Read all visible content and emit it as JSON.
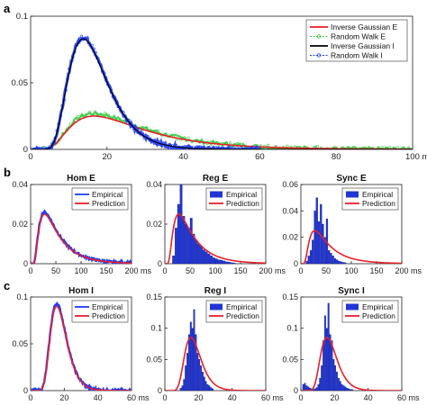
{
  "panel_labels": {
    "a": "a",
    "b": "b",
    "c": "c"
  },
  "unit": "ms",
  "colors": {
    "inverse_gaussian_e": "#e8202a",
    "random_walk_e": "#2ec93a",
    "inverse_gaussian_i": "#000000",
    "random_walk_i": "#1f3cff",
    "empirical": "#1f3cff",
    "prediction": "#e8202a",
    "hist_bar": "#2135d6"
  },
  "chart_data": [
    {
      "id": "a",
      "type": "line",
      "xlim": [
        0,
        100
      ],
      "ylim": [
        0,
        0.1
      ],
      "xticks": [
        "0",
        "20",
        "40",
        "60",
        "80",
        "100 ms"
      ],
      "yticks": [
        "0",
        "0.05",
        "0.1"
      ],
      "legend_position": "top-right",
      "series": [
        {
          "name": "Inverse Gaussian E",
          "mean": 27,
          "shape": 80,
          "peak": 0.025
        },
        {
          "name": "Random Walk E",
          "mean": 27,
          "shape": 80,
          "peak": 0.027
        },
        {
          "name": "Inverse Gaussian I",
          "mean": 17,
          "shape": 120,
          "peak": 0.083
        },
        {
          "name": "Random Walk I",
          "mean": 17,
          "shape": 120,
          "peak": 0.084
        }
      ]
    },
    {
      "id": "b1",
      "type": "line",
      "title": "Hom E",
      "xlim": [
        0,
        200
      ],
      "ylim": [
        0,
        0.04
      ],
      "xticks": [
        "0",
        "50",
        "100",
        "150",
        "200 ms"
      ],
      "yticks": [
        "0",
        "0.02",
        "0.04"
      ],
      "legend_position": "top-right",
      "series": [
        {
          "name": "Empirical",
          "mean": 55,
          "shape": 110,
          "peak": 0.026
        },
        {
          "name": "Prediction",
          "mean": 55,
          "shape": 110,
          "peak": 0.025
        }
      ]
    },
    {
      "id": "b2",
      "type": "bar",
      "title": "Reg E",
      "xlim": [
        0,
        200
      ],
      "ylim": [
        0,
        0.04
      ],
      "xticks": [
        "0",
        "50",
        "100",
        "150",
        "200 ms"
      ],
      "yticks": [
        "0",
        "0.02",
        "0.04"
      ],
      "legend_position": "top-right",
      "bin_width": 5,
      "bins_start": 15,
      "values": [
        0.004,
        0.018,
        0.03,
        0.04,
        0.024,
        0.02,
        0.018,
        0.023,
        0.015,
        0.012,
        0.01,
        0.009,
        0.007,
        0.006,
        0.005,
        0.004,
        0.003,
        0.0025,
        0.002,
        0.0018,
        0.0014,
        0.001,
        0.0008,
        0.0006,
        0.0004
      ],
      "series": [
        {
          "name": "Empirical"
        },
        {
          "name": "Prediction",
          "mean": 55,
          "shape": 110,
          "peak": 0.025
        }
      ]
    },
    {
      "id": "b3",
      "type": "bar",
      "title": "Sync E",
      "xlim": [
        0,
        200
      ],
      "ylim": [
        0,
        0.06
      ],
      "xticks": [
        "0",
        "50",
        "100",
        "150",
        "200 ms"
      ],
      "yticks": [
        "0",
        "0.02",
        "0.04",
        "0.06"
      ],
      "legend_position": "top-right",
      "bin_width": 4,
      "bins_start": 10,
      "values": [
        0.002,
        0.006,
        0.01,
        0.018,
        0.04,
        0.05,
        0.032,
        0.045,
        0.03,
        0.02,
        0.034,
        0.01,
        0.008,
        0.006,
        0.004,
        0.003,
        0.002,
        0.0015,
        0.001,
        0.0008
      ],
      "series": [
        {
          "name": "Empirical"
        },
        {
          "name": "Prediction",
          "mean": 55,
          "shape": 110,
          "peak": 0.025
        }
      ]
    },
    {
      "id": "c1",
      "type": "line",
      "title": "Hom I",
      "xlim": [
        0,
        60
      ],
      "ylim": [
        0,
        0.1
      ],
      "xticks": [
        "0",
        "20",
        "40",
        "60 ms"
      ],
      "yticks": [
        "0",
        "0.05",
        "0.1"
      ],
      "legend_position": "top-right",
      "series": [
        {
          "name": "Empirical",
          "mean": 18,
          "shape": 180,
          "peak": 0.093
        },
        {
          "name": "Prediction",
          "mean": 18,
          "shape": 180,
          "peak": 0.09
        }
      ]
    },
    {
      "id": "c2",
      "type": "bar",
      "title": "Reg I",
      "xlim": [
        0,
        60
      ],
      "ylim": [
        0,
        0.15
      ],
      "xticks": [
        "0",
        "20",
        "40",
        "60 ms"
      ],
      "yticks": [
        "0",
        "0.05",
        "0.1",
        "0.15"
      ],
      "legend_position": "top-right",
      "bin_width": 1,
      "bins_start": 9,
      "values": [
        0.004,
        0.008,
        0.018,
        0.04,
        0.06,
        0.09,
        0.11,
        0.1,
        0.13,
        0.09,
        0.06,
        0.05,
        0.04,
        0.03,
        0.022,
        0.015,
        0.01,
        0.008,
        0.005,
        0.003
      ],
      "series": [
        {
          "name": "Empirical"
        },
        {
          "name": "Prediction",
          "mean": 18,
          "shape": 180,
          "peak": 0.085
        }
      ]
    },
    {
      "id": "c3",
      "type": "bar",
      "title": "Sync I",
      "xlim": [
        0,
        60
      ],
      "ylim": [
        0,
        0.15
      ],
      "xticks": [
        "0",
        "20",
        "40",
        "60 ms"
      ],
      "yticks": [
        "0",
        "0.05",
        "0.1",
        "0.15"
      ],
      "legend_position": "top-right",
      "bin_width": 1,
      "bins_start": 1,
      "values": [
        0.01,
        0.012,
        0.008,
        0.006,
        0.004,
        0.003,
        0.002,
        0.003,
        0.005,
        0.01,
        0.02,
        0.04,
        0.08,
        0.12,
        0.1,
        0.14,
        0.09,
        0.08,
        0.05,
        0.04,
        0.03,
        0.02,
        0.015,
        0.01,
        0.008,
        0.006,
        0.004,
        0.003,
        0.002,
        0.002
      ],
      "series": [
        {
          "name": "Empirical"
        },
        {
          "name": "Prediction",
          "mean": 18,
          "shape": 180,
          "peak": 0.085
        }
      ]
    }
  ]
}
